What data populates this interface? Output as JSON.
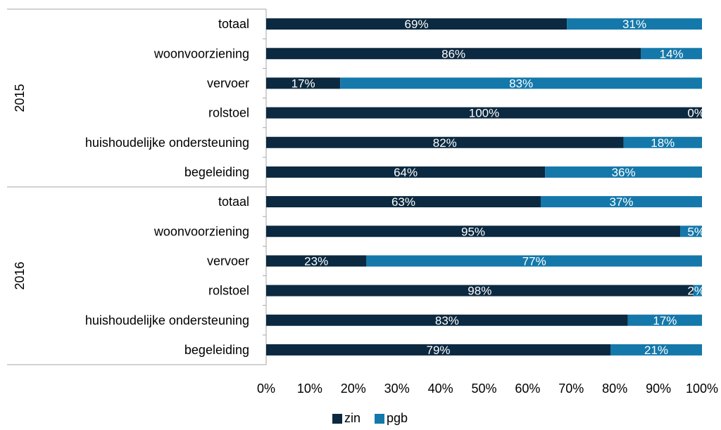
{
  "chart_data": {
    "type": "bar",
    "orientation": "horizontal",
    "stacked": "percent",
    "xlim": [
      0,
      100
    ],
    "x_ticks": [
      "0%",
      "10%",
      "20%",
      "30%",
      "40%",
      "50%",
      "60%",
      "70%",
      "80%",
      "90%",
      "100%"
    ],
    "legend_position": "bottom",
    "groups": [
      {
        "label": "2015",
        "categories": [
          "totaal",
          "woonvoorziening",
          "vervoer",
          "rolstoel",
          "huishoudelijke ondersteuning",
          "begeleiding"
        ],
        "zin": [
          69,
          86,
          17,
          100,
          82,
          64
        ],
        "pgb": [
          31,
          14,
          83,
          0,
          18,
          36
        ],
        "zin_labels": [
          "69%",
          "86%",
          "17%",
          "100%",
          "82%",
          "64%"
        ],
        "pgb_labels": [
          "31%",
          "14%",
          "83%",
          "0%",
          "18%",
          "36%"
        ]
      },
      {
        "label": "2016",
        "categories": [
          "totaal",
          "woonvoorziening",
          "vervoer",
          "rolstoel",
          "huishoudelijke ondersteuning",
          "begeleiding"
        ],
        "zin": [
          63,
          95,
          23,
          98,
          83,
          79
        ],
        "pgb": [
          37,
          5,
          77,
          2,
          17,
          21
        ],
        "zin_labels": [
          "63%",
          "95%",
          "23%",
          "98%",
          "83%",
          "79%"
        ],
        "pgb_labels": [
          "37%",
          "5%",
          "77%",
          "2%",
          "17%",
          "21%"
        ]
      }
    ],
    "series": [
      {
        "name": "zin",
        "color": "#0b2940"
      },
      {
        "name": "pgb",
        "color": "#1478aa"
      }
    ]
  }
}
